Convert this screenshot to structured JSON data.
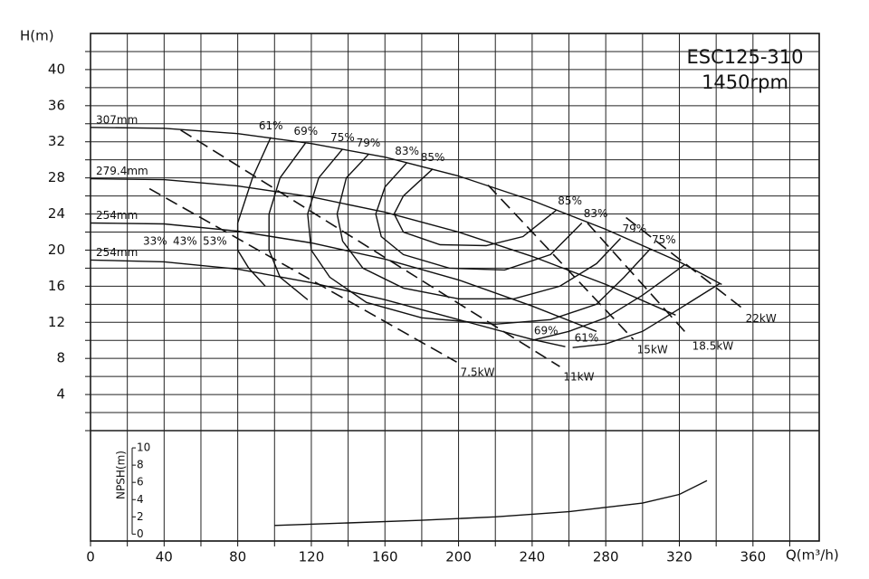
{
  "chart_data": [
    {
      "type": "line",
      "title": "ESC125-310",
      "subtitle": "1450rpm",
      "y_label": "H(m)",
      "xlim": [
        0,
        396
      ],
      "xgrid": [
        0,
        20,
        40,
        60,
        80,
        100,
        120,
        140,
        160,
        180,
        200,
        220,
        240,
        260,
        280,
        300,
        320,
        340,
        360,
        380
      ],
      "ylim": [
        0,
        44
      ],
      "yticks": [
        4,
        8,
        12,
        16,
        20,
        24,
        28,
        32,
        36,
        40
      ],
      "ygrid": [
        0,
        2,
        4,
        6,
        8,
        10,
        12,
        14,
        16,
        18,
        20,
        22,
        24,
        26,
        28,
        30,
        32,
        34,
        36,
        38,
        40,
        42
      ],
      "color": "#000000",
      "series": [
        {
          "name": "307mm",
          "x": [
            0,
            40,
            80,
            120,
            160,
            200,
            240,
            280,
            320,
            343
          ],
          "values": [
            33.6,
            33.5,
            32.9,
            31.8,
            30.3,
            28.2,
            25.5,
            22.3,
            18.7,
            16.2
          ]
        },
        {
          "name": "279.4mm",
          "x": [
            0,
            40,
            80,
            120,
            160,
            200,
            240,
            280,
            318
          ],
          "values": [
            27.9,
            27.8,
            27.1,
            25.9,
            24.2,
            22,
            19.3,
            16.2,
            12.8
          ]
        },
        {
          "name": "254mm",
          "x": [
            0,
            40,
            80,
            120,
            160,
            200,
            240,
            275
          ],
          "values": [
            23,
            22.9,
            22.1,
            20.8,
            19,
            16.7,
            13.8,
            11
          ]
        },
        {
          "name": "254mm",
          "x": [
            0,
            40,
            80,
            120,
            160,
            200,
            240,
            258
          ],
          "values": [
            18.9,
            18.7,
            17.9,
            16.4,
            14.5,
            12.3,
            10.1,
            9.3
          ]
        }
      ],
      "efficiency": [
        {
          "name": "61%",
          "x": [
            98,
            88,
            80,
            80,
            86,
            95,
            null,
            342,
            320,
            300,
            280,
            262
          ],
          "values": [
            32.5,
            28,
            23,
            20,
            18,
            16,
            null,
            16.3,
            13.5,
            11,
            9.6,
            9.2
          ]
        },
        {
          "name": "69%",
          "x": [
            117,
            103,
            97,
            97,
            103,
            118,
            null,
            323,
            300,
            280,
            260,
            240
          ],
          "values": [
            31.9,
            28,
            24,
            20,
            17,
            14.5,
            null,
            18.4,
            15,
            12.5,
            11,
            10
          ]
        },
        {
          "name": "75%",
          "x": [
            137,
            124,
            118,
            120,
            130,
            150,
            180,
            220,
            250,
            275,
            290,
            304
          ],
          "values": [
            31.2,
            28,
            24,
            20,
            17,
            14.2,
            12.5,
            11.8,
            12.3,
            14,
            17,
            20.1
          ]
        },
        {
          "name": "79%",
          "x": [
            151,
            139,
            134,
            137,
            148,
            170,
            200,
            230,
            255,
            275,
            288
          ],
          "values": [
            30.6,
            28,
            24,
            21,
            18,
            15.8,
            14.6,
            14.6,
            16,
            18.5,
            21.3
          ]
        },
        {
          "name": "83%",
          "x": [
            172,
            160,
            155,
            158,
            170,
            195,
            225,
            250,
            267
          ],
          "values": [
            29.7,
            27,
            24,
            21.5,
            19.5,
            18,
            17.8,
            19.5,
            23
          ]
        },
        {
          "name": "85%",
          "x": [
            186,
            170,
            165,
            170,
            190,
            215,
            235,
            253
          ],
          "values": [
            29,
            26,
            24,
            22,
            20.6,
            20.5,
            21.5,
            24.4
          ]
        }
      ],
      "efficiency_low": [
        "33%",
        "43%",
        "53%"
      ],
      "power": [
        {
          "name": "7.5kW",
          "x": [
            32,
            199
          ],
          "values": [
            26.8,
            7.6
          ]
        },
        {
          "name": "11kW",
          "x": [
            49,
            255
          ],
          "values": [
            33.3,
            7.1
          ]
        },
        {
          "name": "15kW",
          "x": [
            216,
            295
          ],
          "values": [
            27.2,
            10.1
          ]
        },
        {
          "name": "18.5kW",
          "x": [
            270,
            325
          ],
          "values": [
            23,
            10.5
          ]
        },
        {
          "name": "22kW",
          "x": [
            291,
            354
          ],
          "values": [
            23.6,
            13.6
          ]
        }
      ]
    },
    {
      "type": "line",
      "y_label": "NPSH(m)",
      "x_label": "Q(m³/h)",
      "xlim": [
        0,
        396
      ],
      "xticks": [
        0,
        40,
        80,
        120,
        160,
        200,
        240,
        280,
        320,
        360
      ],
      "xgrid": [
        0,
        20,
        40,
        60,
        80,
        100,
        120,
        140,
        160,
        180,
        200,
        220,
        240,
        260,
        280,
        300,
        320,
        340,
        360,
        380
      ],
      "ylim": [
        -0.8,
        12
      ],
      "yticks": [
        0,
        2,
        4,
        6,
        8,
        10
      ],
      "color": "#000000",
      "x": [
        100,
        140,
        180,
        220,
        260,
        300,
        320,
        335
      ],
      "values": [
        1,
        1.3,
        1.6,
        2,
        2.6,
        3.6,
        4.6,
        6.2
      ]
    }
  ]
}
